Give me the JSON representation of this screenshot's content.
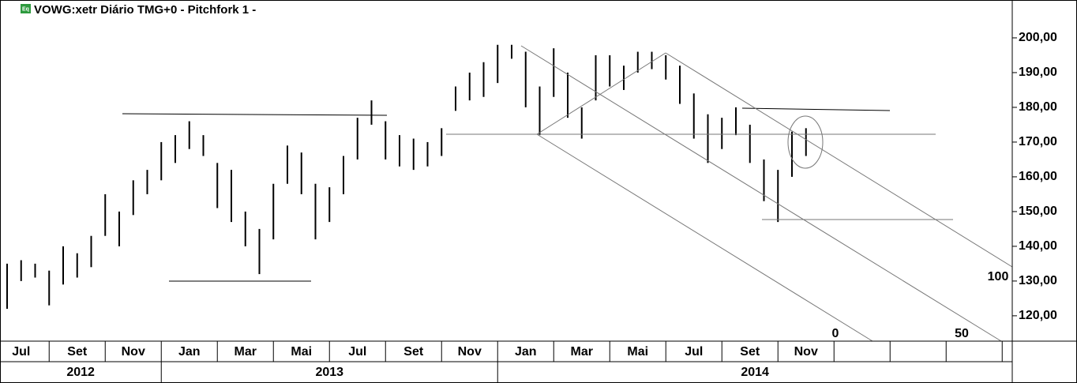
{
  "chart_data": {
    "type": "hilo",
    "title": "VOWG:xetr Diário TMG+0  -  Pitchfork 1 -",
    "icon_label": "Eq",
    "color": "#000000",
    "ylim": [
      112.7,
      210.9
    ],
    "yticks": [
      {
        "value": 120,
        "label": "120,00"
      },
      {
        "value": 130,
        "label": "130,00"
      },
      {
        "value": 140,
        "label": "140,00"
      },
      {
        "value": 150,
        "label": "150,00"
      },
      {
        "value": 160,
        "label": "160,00"
      },
      {
        "value": 170,
        "label": "170,00"
      },
      {
        "value": 180,
        "label": "180,00"
      },
      {
        "value": 190,
        "label": "190,00"
      },
      {
        "value": 200,
        "label": "200,00"
      }
    ],
    "categories": [
      null,
      "Jul",
      null,
      null,
      null,
      "Set",
      null,
      null,
      null,
      "Nov",
      null,
      null,
      null,
      "Jan",
      null,
      null,
      null,
      "Mar",
      null,
      null,
      null,
      "Mai",
      null,
      null,
      null,
      "Jul",
      null,
      null,
      null,
      "Set",
      null,
      null,
      null,
      "Nov",
      null,
      null,
      null,
      "Jan",
      null,
      null,
      null,
      "Mar",
      null,
      null,
      null,
      "Mai",
      null,
      null,
      null,
      "Jul",
      null,
      null,
      null,
      "Set",
      null,
      null,
      null,
      "Nov",
      null,
      null,
      null,
      null,
      null,
      null,
      null,
      null,
      null,
      null,
      null,
      null,
      null,
      null
    ],
    "years": [
      "2012",
      "2013",
      "2014"
    ],
    "high": [
      135,
      136,
      135,
      133,
      140,
      138,
      143,
      155,
      150,
      159,
      162,
      170,
      172,
      176,
      172,
      164,
      162,
      150,
      145,
      158,
      169,
      167,
      158,
      157,
      166,
      177,
      182,
      176,
      172,
      171,
      170,
      174,
      186,
      190,
      193,
      198,
      198,
      196,
      186,
      197,
      190,
      180,
      195,
      195,
      192,
      196,
      196,
      195,
      192,
      184,
      178,
      177,
      180,
      175,
      165,
      162,
      173,
      174,
      null,
      null,
      null,
      null,
      null,
      null,
      null,
      null,
      null,
      null,
      null,
      null,
      null,
      null
    ],
    "low": [
      122,
      130,
      131,
      123,
      129,
      131,
      134,
      143,
      140,
      149,
      155,
      159,
      164,
      168,
      166,
      151,
      147,
      140,
      132,
      142,
      158,
      155,
      142,
      147,
      155,
      165,
      175,
      165,
      163,
      162,
      163,
      166,
      179,
      182,
      183,
      187,
      194,
      180,
      172,
      183,
      177,
      171,
      182,
      186,
      185,
      190,
      191,
      188,
      181,
      171,
      164,
      168,
      172,
      164,
      153,
      147,
      160,
      166,
      null,
      null,
      null,
      null,
      null,
      null,
      null,
      null,
      null,
      null,
      null,
      null,
      null,
      null
    ],
    "annotations": [
      "0",
      "50",
      "100"
    ]
  }
}
